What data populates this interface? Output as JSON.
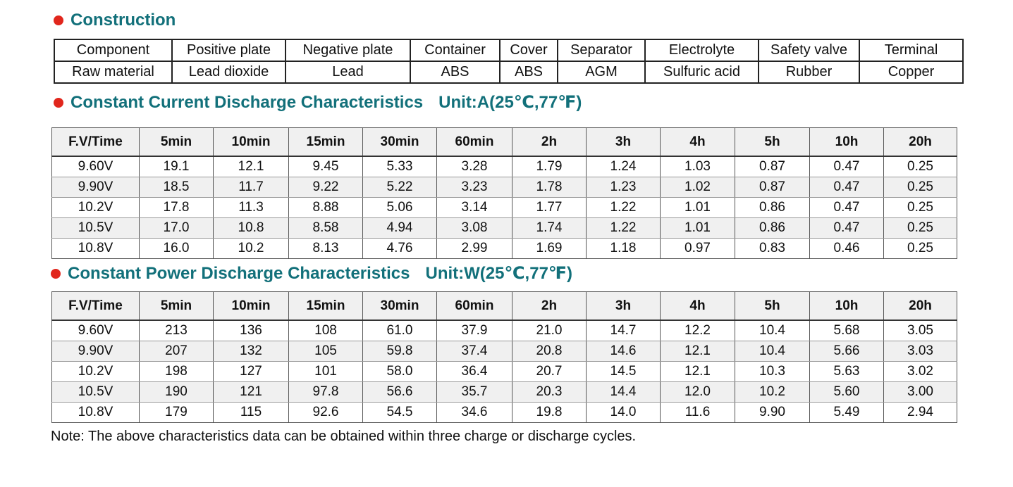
{
  "construction": {
    "title": "Construction",
    "rows": [
      [
        "Component",
        "Positive plate",
        "Negative plate",
        "Container",
        "Cover",
        "Separator",
        "Electrolyte",
        "Safety valve",
        "Terminal"
      ],
      [
        "Raw material",
        "Lead dioxide",
        "Lead",
        "ABS",
        "ABS",
        "AGM",
        "Sulfuric acid",
        "Rubber",
        "Copper"
      ]
    ]
  },
  "current": {
    "title": "Constant Current Discharge Characteristics",
    "unit": "Unit:A(25℃,77℉)",
    "headers": [
      "F.V/Time",
      "5min",
      "10min",
      "15min",
      "30min",
      "60min",
      "2h",
      "3h",
      "4h",
      "5h",
      "10h",
      "20h"
    ],
    "rows": [
      [
        "9.60V",
        "19.1",
        "12.1",
        "9.45",
        "5.33",
        "3.28",
        "1.79",
        "1.24",
        "1.03",
        "0.87",
        "0.47",
        "0.25"
      ],
      [
        "9.90V",
        "18.5",
        "11.7",
        "9.22",
        "5.22",
        "3.23",
        "1.78",
        "1.23",
        "1.02",
        "0.87",
        "0.47",
        "0.25"
      ],
      [
        "10.2V",
        "17.8",
        "11.3",
        "8.88",
        "5.06",
        "3.14",
        "1.77",
        "1.22",
        "1.01",
        "0.86",
        "0.47",
        "0.25"
      ],
      [
        "10.5V",
        "17.0",
        "10.8",
        "8.58",
        "4.94",
        "3.08",
        "1.74",
        "1.22",
        "1.01",
        "0.86",
        "0.47",
        "0.25"
      ],
      [
        "10.8V",
        "16.0",
        "10.2",
        "8.13",
        "4.76",
        "2.99",
        "1.69",
        "1.18",
        "0.97",
        "0.83",
        "0.46",
        "0.25"
      ]
    ]
  },
  "power": {
    "title": "Constant Power Discharge Characteristics",
    "unit": "Unit:W(25℃,77℉)",
    "headers": [
      "F.V/Time",
      "5min",
      "10min",
      "15min",
      "30min",
      "60min",
      "2h",
      "3h",
      "4h",
      "5h",
      "10h",
      "20h"
    ],
    "rows": [
      [
        "9.60V",
        "213",
        "136",
        "108",
        "61.0",
        "37.9",
        "21.0",
        "14.7",
        "12.2",
        "10.4",
        "5.68",
        "3.05"
      ],
      [
        "9.90V",
        "207",
        "132",
        "105",
        "59.8",
        "37.4",
        "20.8",
        "14.6",
        "12.1",
        "10.4",
        "5.66",
        "3.03"
      ],
      [
        "10.2V",
        "198",
        "127",
        "101",
        "58.0",
        "36.4",
        "20.7",
        "14.5",
        "12.1",
        "10.3",
        "5.63",
        "3.02"
      ],
      [
        "10.5V",
        "190",
        "121",
        "97.8",
        "56.6",
        "35.7",
        "20.3",
        "14.4",
        "12.0",
        "10.2",
        "5.60",
        "3.00"
      ],
      [
        "10.8V",
        "179",
        "115",
        "92.6",
        "54.5",
        "34.6",
        "19.8",
        "14.0",
        "11.6",
        "9.90",
        "5.49",
        "2.94"
      ]
    ]
  },
  "note": "Note: The above characteristics data can be obtained within three charge or discharge cycles.",
  "colors": {
    "title": "#12707a",
    "bullet": "#e1261c",
    "header_bg": "#f0f0f0"
  }
}
